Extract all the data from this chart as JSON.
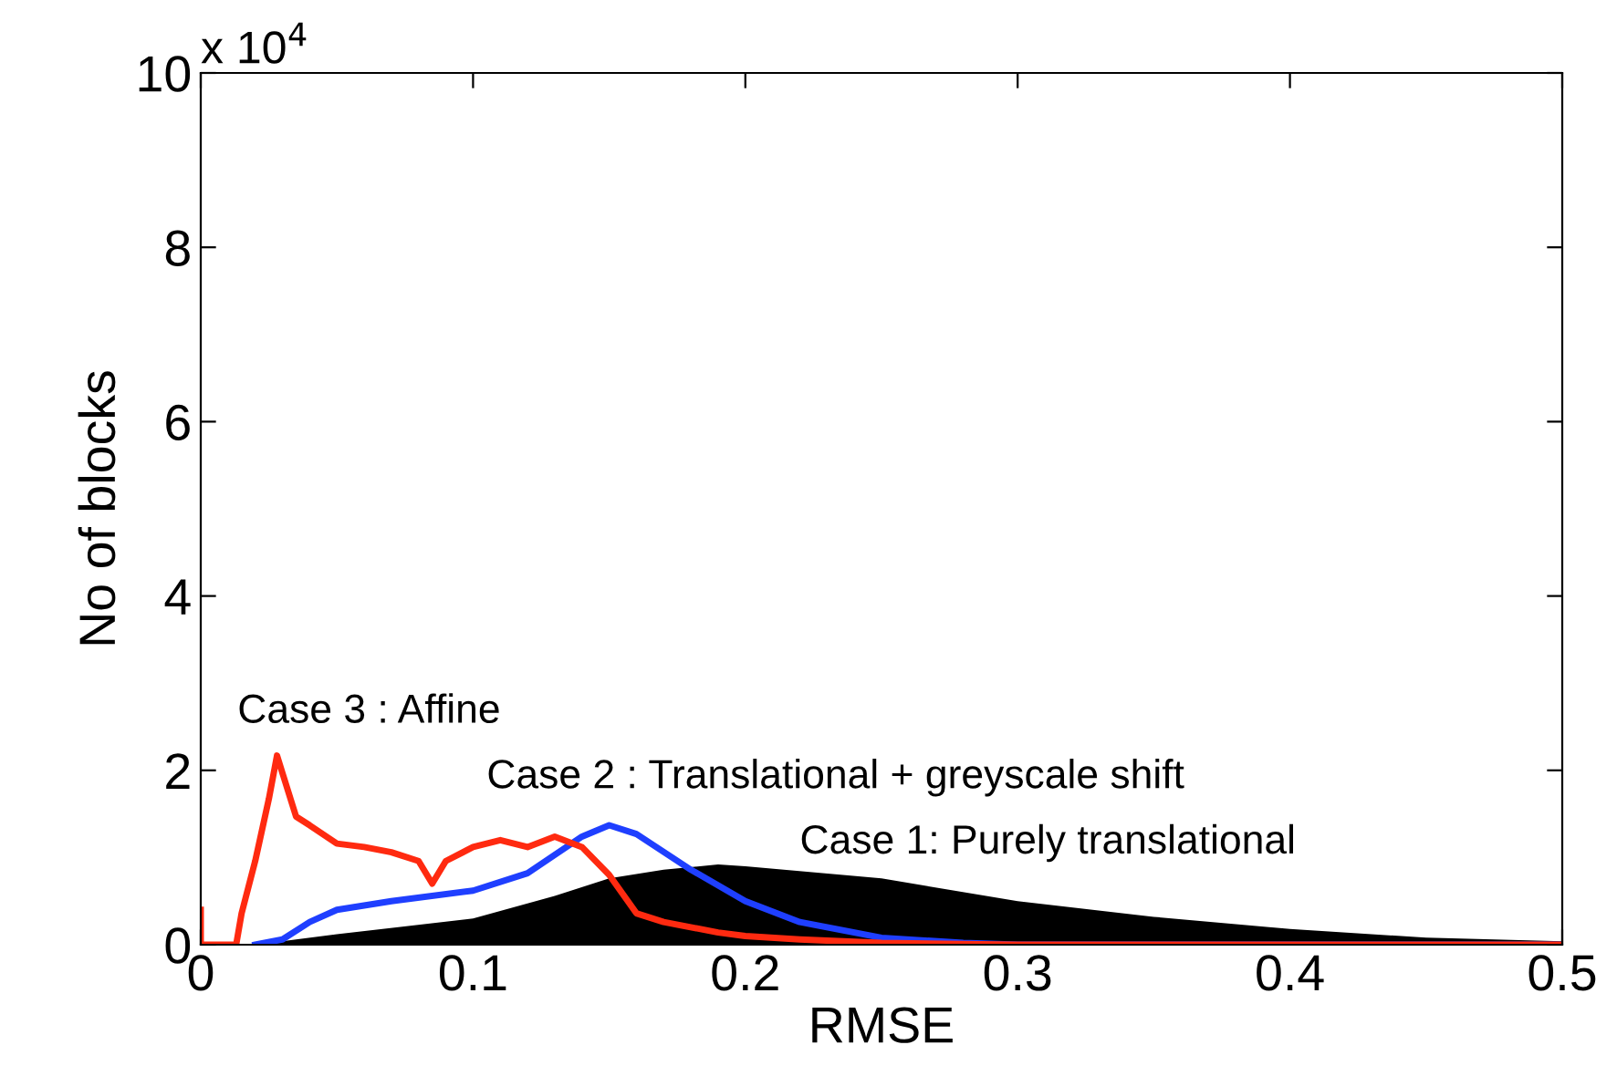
{
  "chart_data": {
    "type": "line",
    "xlabel": "RMSE",
    "ylabel": "No of blocks",
    "xlim": [
      0,
      0.5
    ],
    "xticks": [
      0,
      0.1,
      0.2,
      0.3,
      0.4,
      0.5
    ],
    "ylim": [
      0,
      10
    ],
    "yticks": [
      0,
      2,
      4,
      6,
      8,
      10
    ],
    "grid": false,
    "legend": false,
    "annotations": [
      "x 10$^{4}$",
      "Case 3 : Affine",
      "Case 2 : Translational + greyscale shift",
      "Case 1: Purely translational"
    ],
    "series": [
      {
        "type": "area",
        "color": "#000000",
        "x": [
          0.02,
          0.05,
          0.1,
          0.13,
          0.15,
          0.17,
          0.19,
          0.2,
          0.25,
          0.3,
          0.35,
          0.4,
          0.45,
          0.5
        ],
        "values": [
          0,
          0.12,
          0.3,
          0.56,
          0.76,
          0.86,
          0.92,
          0.9,
          0.76,
          0.5,
          0.32,
          0.18,
          0.08,
          0.04
        ]
      },
      {
        "color": "#1f3fff",
        "x": [
          0.02,
          0.03,
          0.04,
          0.05,
          0.07,
          0.1,
          0.12,
          0.14,
          0.15,
          0.16,
          0.18,
          0.2,
          0.22,
          0.25,
          0.28,
          0.3,
          0.5
        ],
        "values": [
          0,
          0.06,
          0.26,
          0.4,
          0.5,
          0.62,
          0.82,
          1.24,
          1.37,
          1.27,
          0.86,
          0.5,
          0.26,
          0.08,
          0.02,
          0,
          0
        ]
      },
      {
        "color": "#ff2a10",
        "x": [
          0,
          0,
          0.001,
          0.013,
          0.015,
          0.02,
          0.025,
          0.028,
          0.03,
          0.035,
          0.04,
          0.05,
          0.06,
          0.07,
          0.08,
          0.085,
          0.09,
          0.1,
          0.11,
          0.12,
          0.13,
          0.14,
          0.15,
          0.16,
          0.17,
          0.19,
          0.2,
          0.22,
          0.25,
          0.3,
          0.5
        ],
        "values": [
          0.4,
          0,
          0,
          0,
          0.36,
          0.96,
          1.67,
          2.17,
          1.97,
          1.47,
          1.37,
          1.16,
          1.12,
          1.06,
          0.96,
          0.7,
          0.96,
          1.12,
          1.2,
          1.12,
          1.24,
          1.12,
          0.8,
          0.36,
          0.26,
          0.14,
          0.1,
          0.06,
          0.02,
          0,
          0
        ]
      }
    ]
  }
}
